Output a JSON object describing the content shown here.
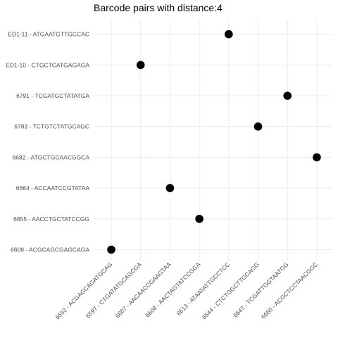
{
  "chart_data": {
    "type": "scatter",
    "title": "Barcode pairs with distance:4",
    "xlabel": "",
    "ylabel": "",
    "grid": true,
    "legend": "none",
    "x_categories": [
      "6592 - ACGAGCAGATGCAG",
      "6597 - CTGATATGCAGCGA",
      "6607 - AACAACCGAAGTAA",
      "6608 - AACTAGTATCCGGA",
      "6613 - ATAATATTGCCTCC",
      "6644 - CTCTGGCTTGCAGG",
      "6647 - TCGATTGGTAATGG",
      "6650 - ACGCTCCTAACGGC"
    ],
    "y_categories": [
      "6609 - ACGCAGCGAGCAGA",
      "6655 - AACCTGCTATCCGG",
      "6664 - ACCAATCCGTATAA",
      "6682 - ATGCTGCAACGGCA",
      "6783 - TCTGTCTATGCAGC",
      "6791 - TCGATGCTATATGA",
      "ED1-10 - CTGCTCATGAGAGA",
      "ED1-11 - ATGAATGTTGCCAC"
    ],
    "points": [
      {
        "x": "6592 - ACGAGCAGATGCAG",
        "y": "6609 - ACGCAGCGAGCAGA"
      },
      {
        "x": "6597 - CTGATATGCAGCGA",
        "y": "ED1-10 - CTGCTCATGAGAGA"
      },
      {
        "x": "6607 - AACAACCGAAGTAA",
        "y": "6664 - ACCAATCCGTATAA"
      },
      {
        "x": "6608 - AACTAGTATCCGGA",
        "y": "6655 - AACCTGCTATCCGG"
      },
      {
        "x": "6613 - ATAATATTGCCTCC",
        "y": "ED1-11 - ATGAATGTTGCCAC"
      },
      {
        "x": "6644 - CTCTGGCTTGCAGG",
        "y": "6783 - TCTGTCTATGCAGC"
      },
      {
        "x": "6647 - TCGATTGGTAATGG",
        "y": "6791 - TCGATGCTATATGA"
      },
      {
        "x": "6650 - ACGCTCCTAACGGC",
        "y": "6682 - ATGCTGCAACGGCA"
      }
    ],
    "colors": {
      "point": "#000000",
      "grid": "#ebebeb",
      "tick_text": "#4d4d4d",
      "title": "#000000"
    }
  }
}
